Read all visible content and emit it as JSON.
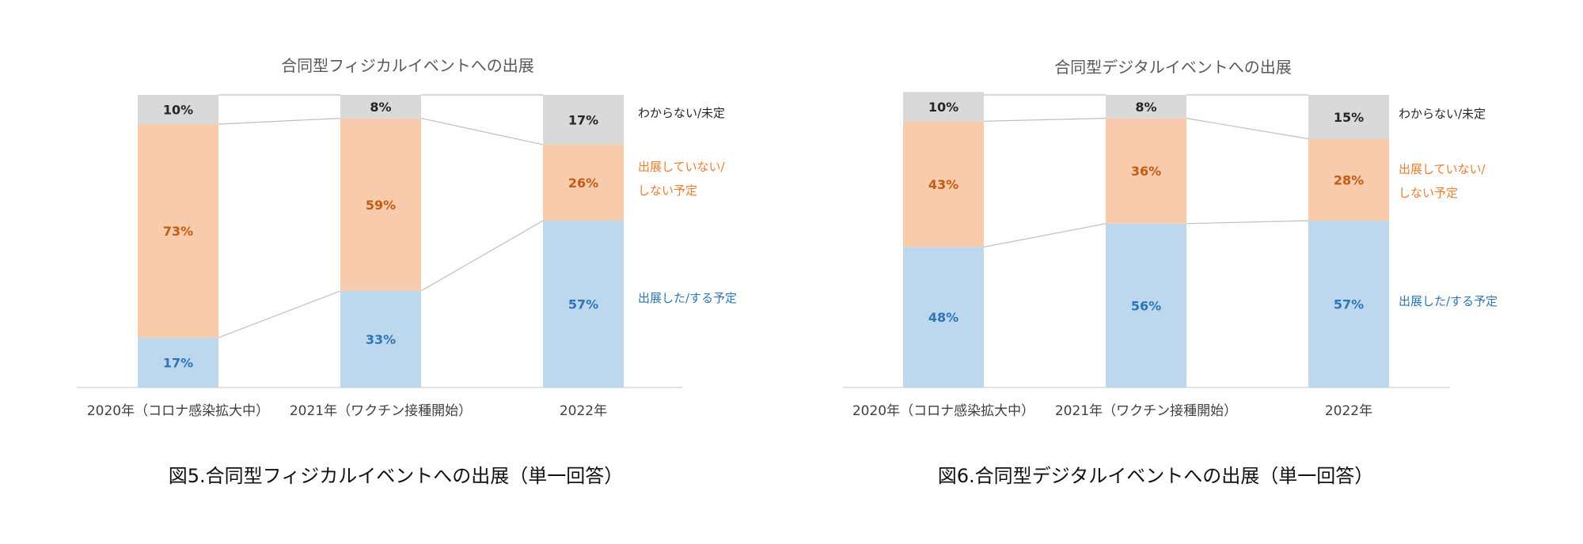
{
  "colors": {
    "unknown": "#D9D9D9",
    "not_exhibit": "#F8CBAD",
    "exhibit": "#BDD7EE",
    "unknown_text": "#262626",
    "not_exhibit_text": "#C55A11",
    "exhibit_text": "#2E75B6",
    "legend_unknown": "#262626",
    "legend_not_exhibit": "#ED7D31",
    "legend_exhibit": "#2E75B6",
    "connector": "#BFBFBF",
    "axis": "#D9D9D9",
    "title": "#595959",
    "tick": "#404040"
  },
  "captions": [
    "図5.合同型フィジカルイベントへの出展（単一回答）",
    "図6.合同型デジタルイベントへの出展（単一回答）"
  ],
  "chart_data": [
    {
      "type": "bar",
      "stacked": true,
      "percent": true,
      "title": "合同型フィジカルイベントへの出展",
      "categories": [
        "2020年（コロナ感染拡大中）",
        "2021年（ワクチン接種開始）",
        "2022年"
      ],
      "series": [
        {
          "key": "exhibit",
          "name": "出展した/する予定",
          "values": [
            17,
            33,
            57
          ],
          "labels": [
            "17%",
            "33%",
            "57%"
          ]
        },
        {
          "key": "not_exhibit",
          "name": "出展していない/しない予定",
          "legend_lines": [
            "出展していない/",
            "しない予定"
          ],
          "values": [
            73,
            59,
            26
          ],
          "labels": [
            "73%",
            "59%",
            "26%"
          ]
        },
        {
          "key": "unknown",
          "name": "わからない/未定",
          "values": [
            10,
            8,
            17
          ],
          "labels": [
            "10%",
            "8%",
            "17%"
          ]
        }
      ],
      "ylim": [
        0,
        100
      ],
      "legend": "right",
      "series_lines": true
    },
    {
      "type": "bar",
      "stacked": true,
      "percent": true,
      "title": "合同型デジタルイベントへの出展",
      "categories": [
        "2020年（コロナ感染拡大中）",
        "2021年（ワクチン接種開始）",
        "2022年"
      ],
      "series": [
        {
          "key": "exhibit",
          "name": "出展した/する予定",
          "values": [
            48,
            56,
            57
          ],
          "labels": [
            "48%",
            "56%",
            "57%"
          ]
        },
        {
          "key": "not_exhibit",
          "name": "出展していない/しない予定",
          "legend_lines": [
            "出展していない/",
            "しない予定"
          ],
          "values": [
            43,
            36,
            28
          ],
          "labels": [
            "43%",
            "36%",
            "28%"
          ]
        },
        {
          "key": "unknown",
          "name": "わからない/未定",
          "values": [
            10,
            8,
            15
          ],
          "labels": [
            "10%",
            "8%",
            "15%"
          ]
        }
      ],
      "ylim": [
        0,
        100
      ],
      "legend": "right",
      "series_lines": true
    }
  ]
}
